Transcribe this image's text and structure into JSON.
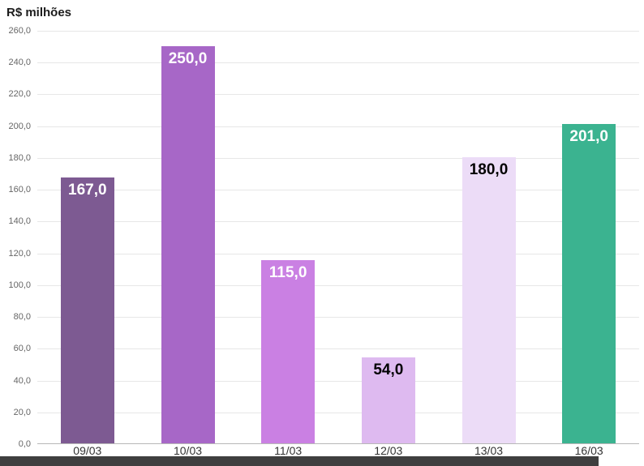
{
  "chart_data": {
    "type": "bar",
    "title": "R$ milhões",
    "categories": [
      "09/03",
      "10/03",
      "11/03",
      "12/03",
      "13/03",
      "16/03"
    ],
    "values": [
      167.0,
      250.0,
      115.0,
      54.0,
      180.0,
      201.0
    ],
    "value_labels": [
      "167,0",
      "250,0",
      "115,0",
      "54,0",
      "180,0",
      "201,0"
    ],
    "bar_colors": [
      "#7d5a92",
      "#a767c7",
      "#ca80e3",
      "#debaf0",
      "#ecdcf7",
      "#3bb390"
    ],
    "label_colors": [
      "#ffffff",
      "#ffffff",
      "#ffffff",
      "#000000",
      "#000000",
      "#ffffff"
    ],
    "ylabel": "R$ milhões",
    "xlabel": "",
    "ylim": [
      0,
      260
    ],
    "ytick_step": 20,
    "ytick_labels": [
      "0,0",
      "20,0",
      "40,0",
      "60,0",
      "80,0",
      "100,0",
      "120,0",
      "140,0",
      "160,0",
      "180,0",
      "200,0",
      "220,0",
      "240,0",
      "260,0"
    ],
    "grid": true,
    "legend": "none"
  },
  "colors": {
    "background": "#ffffff",
    "grid": "#e7e7e7",
    "axis": "#b8b8b8",
    "tick_text": "#666666",
    "xlabel_text": "#333333",
    "bottom_strip": "#3f3f3f"
  }
}
